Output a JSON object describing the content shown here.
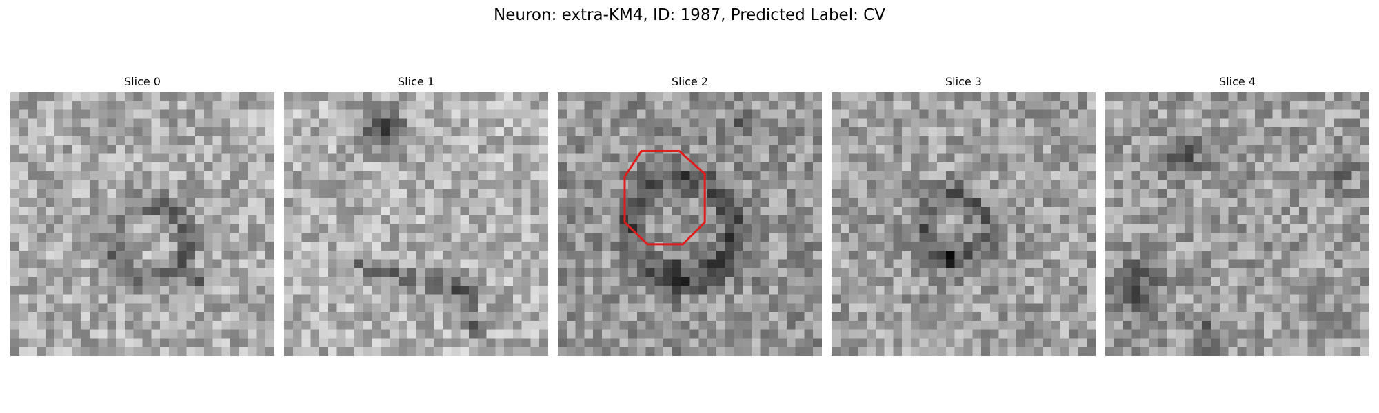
{
  "figure": {
    "title": "Neuron: extra-KM4, ID: 1987, Predicted Label: CV"
  },
  "panels": [
    {
      "title": "Slice 0",
      "has_outline": false
    },
    {
      "title": "Slice 1",
      "has_outline": false
    },
    {
      "title": "Slice 2",
      "has_outline": true
    },
    {
      "title": "Slice 3",
      "has_outline": false
    },
    {
      "title": "Slice 4",
      "has_outline": false
    }
  ],
  "image": {
    "colormap": "grayscale",
    "grid_size": 30
  },
  "outline": {
    "shape": "octagon",
    "color": "#e11b1b"
  }
}
